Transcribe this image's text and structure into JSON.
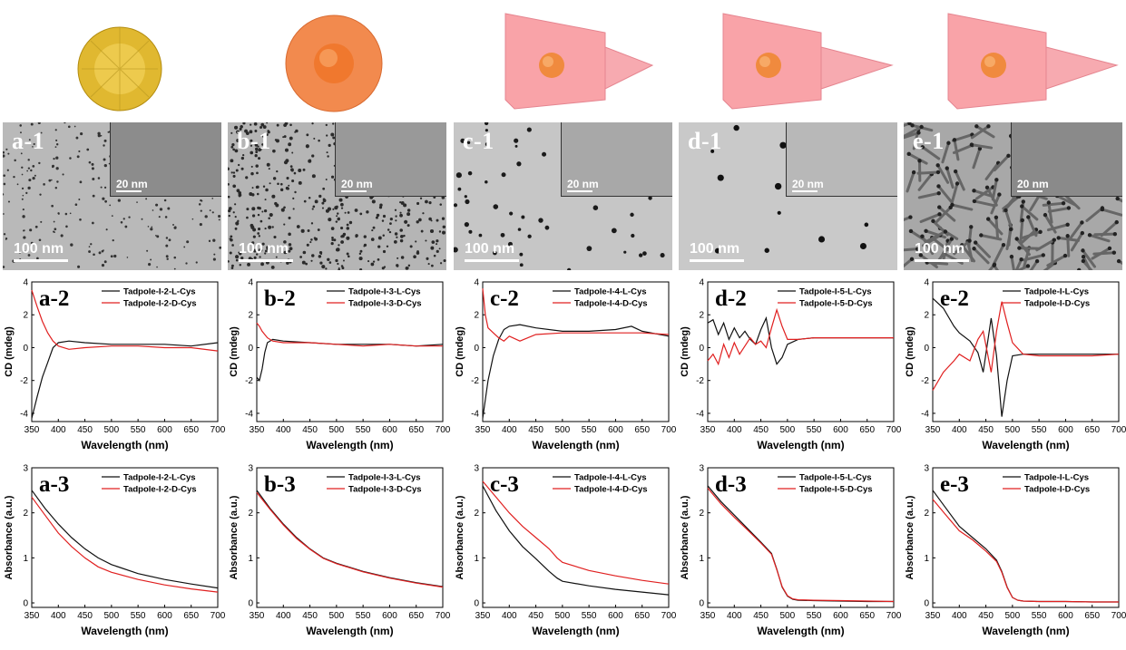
{
  "panels": [
    {
      "tem_label": "a-1",
      "inset_scale": "20 nm",
      "main_scale": "100 nm",
      "cd_label": "a-2",
      "abs_label": "a-3",
      "cd_legend": [
        "Tadpole-I-2-L-Cys",
        "Tadpole-I-2-D-Cys"
      ],
      "abs_legend": [
        "Tadpole-I-2-L-Cys",
        "Tadpole-I-2-D-Cys"
      ],
      "model": "sphere",
      "model_color": "#e0b830"
    },
    {
      "tem_label": "b-1",
      "inset_scale": "20 nm",
      "main_scale": "100 nm",
      "cd_label": "b-2",
      "abs_label": "b-3",
      "cd_legend": [
        "Tadpole-I-3-L-Cys",
        "Tadpole-I-3-D-Cys"
      ],
      "abs_legend": [
        "Tadpole-I-3-L-Cys",
        "Tadpole-I-3-D-Cys"
      ],
      "model": "core-shell",
      "model_color": "#f28a4e"
    },
    {
      "tem_label": "c-1",
      "inset_scale": "20 nm",
      "main_scale": "100 nm",
      "cd_label": "c-2",
      "abs_label": "c-3",
      "cd_legend": [
        "Tadpole-I-4-L-Cys",
        "Tadpole-I-4-D-Cys"
      ],
      "abs_legend": [
        "Tadpole-I-4-L-Cys",
        "Tadpole-I-4-D-Cys"
      ],
      "model": "tadpole-short",
      "model_color": "#f9a3a8"
    },
    {
      "tem_label": "d-1",
      "inset_scale": "20 nm",
      "main_scale": "100 nm",
      "cd_label": "d-2",
      "abs_label": "d-3",
      "cd_legend": [
        "Tadpole-I-5-L-Cys",
        "Tadpole-I-5-D-Cys"
      ],
      "abs_legend": [
        "Tadpole-I-5-L-Cys",
        "Tadpole-I-5-D-Cys"
      ],
      "model": "tadpole-medium",
      "model_color": "#f9a3a8"
    },
    {
      "tem_label": "e-1",
      "inset_scale": "20 nm",
      "main_scale": "100 nm",
      "cd_label": "e-2",
      "abs_label": "e-3",
      "cd_legend": [
        "Tadpole-I-L-Cys",
        "Tadpole-I-D-Cys"
      ],
      "abs_legend": [
        "Tadpole-I-L-Cys",
        "Tadpole-I-D-Cys"
      ],
      "model": "tadpole-long",
      "model_color": "#f9a3a8"
    }
  ],
  "series_colors": {
    "L": "#111111",
    "D": "#e02020"
  },
  "chart_data": [
    {
      "type": "line",
      "panel": "a-2",
      "xlabel": "Wavelength (nm)",
      "ylabel": "CD (mdeg)",
      "xlim": [
        350,
        700
      ],
      "ylim": [
        -4.5,
        4
      ],
      "xticks": [
        350,
        400,
        450,
        500,
        550,
        600,
        650,
        700
      ],
      "yticks": [
        -4,
        -2,
        0,
        2,
        4
      ],
      "series": [
        {
          "name": "Tadpole-I-2-L-Cys",
          "x": [
            350,
            360,
            370,
            380,
            390,
            400,
            420,
            450,
            500,
            550,
            600,
            650,
            700
          ],
          "y": [
            -4.3,
            -3.0,
            -1.8,
            -0.9,
            0.0,
            0.3,
            0.4,
            0.3,
            0.2,
            0.2,
            0.2,
            0.1,
            0.3
          ]
        },
        {
          "name": "Tadpole-I-2-D-Cys",
          "x": [
            350,
            360,
            370,
            380,
            390,
            400,
            420,
            450,
            500,
            550,
            600,
            650,
            700
          ],
          "y": [
            3.5,
            2.5,
            1.6,
            0.9,
            0.4,
            0.1,
            -0.1,
            0.0,
            0.1,
            0.1,
            0.0,
            0.0,
            -0.2
          ]
        }
      ]
    },
    {
      "type": "line",
      "panel": "a-3",
      "xlabel": "Wavelength (nm)",
      "ylabel": "Absorbance (a.u.)",
      "xlim": [
        350,
        700
      ],
      "ylim": [
        -0.1,
        3
      ],
      "xticks": [
        350,
        400,
        450,
        500,
        550,
        600,
        650,
        700
      ],
      "yticks": [
        0,
        1,
        2,
        3
      ],
      "series": [
        {
          "name": "Tadpole-I-2-L-Cys",
          "x": [
            350,
            375,
            400,
            425,
            450,
            475,
            500,
            550,
            600,
            650,
            700
          ],
          "y": [
            2.5,
            2.1,
            1.75,
            1.45,
            1.2,
            1.0,
            0.85,
            0.65,
            0.52,
            0.42,
            0.33
          ]
        },
        {
          "name": "Tadpole-I-2-D-Cys",
          "x": [
            350,
            375,
            400,
            425,
            450,
            475,
            500,
            550,
            600,
            650,
            700
          ],
          "y": [
            2.35,
            1.95,
            1.55,
            1.25,
            1.0,
            0.8,
            0.68,
            0.52,
            0.4,
            0.31,
            0.24
          ]
        }
      ]
    },
    {
      "type": "line",
      "panel": "b-2",
      "xlabel": "Wavelength (nm)",
      "ylabel": "CD (mdeg)",
      "xlim": [
        350,
        700
      ],
      "ylim": [
        -4.5,
        4
      ],
      "xticks": [
        350,
        400,
        450,
        500,
        550,
        600,
        650,
        700
      ],
      "yticks": [
        -4,
        -2,
        0,
        2,
        4
      ],
      "series": [
        {
          "name": "Tadpole-I-3-L-Cys",
          "x": [
            350,
            355,
            360,
            365,
            370,
            380,
            400,
            450,
            500,
            550,
            600,
            650,
            700
          ],
          "y": [
            -1.8,
            -2.0,
            -1.3,
            -0.3,
            0.3,
            0.5,
            0.4,
            0.3,
            0.2,
            0.2,
            0.2,
            0.1,
            0.2
          ]
        },
        {
          "name": "Tadpole-I-3-D-Cys",
          "x": [
            350,
            355,
            360,
            370,
            380,
            400,
            450,
            500,
            550,
            600,
            650,
            700
          ],
          "y": [
            1.5,
            1.3,
            1.0,
            0.6,
            0.4,
            0.3,
            0.3,
            0.2,
            0.1,
            0.2,
            0.1,
            0.1
          ]
        }
      ]
    },
    {
      "type": "line",
      "panel": "b-3",
      "xlabel": "Wavelength (nm)",
      "ylabel": "Absorbance (a.u.)",
      "xlim": [
        350,
        700
      ],
      "ylim": [
        -0.1,
        3
      ],
      "xticks": [
        350,
        400,
        450,
        500,
        550,
        600,
        650,
        700
      ],
      "yticks": [
        0,
        1,
        2,
        3
      ],
      "series": [
        {
          "name": "Tadpole-I-3-L-Cys",
          "x": [
            350,
            375,
            400,
            425,
            450,
            475,
            500,
            550,
            600,
            650,
            700
          ],
          "y": [
            2.5,
            2.1,
            1.75,
            1.45,
            1.2,
            1.0,
            0.88,
            0.7,
            0.56,
            0.45,
            0.36
          ]
        },
        {
          "name": "Tadpole-I-3-D-Cys",
          "x": [
            350,
            375,
            400,
            425,
            450,
            475,
            500,
            550,
            600,
            650,
            700
          ],
          "y": [
            2.45,
            2.08,
            1.73,
            1.43,
            1.19,
            0.99,
            0.87,
            0.69,
            0.55,
            0.44,
            0.35
          ]
        }
      ]
    },
    {
      "type": "line",
      "panel": "c-2",
      "xlabel": "Wavelength (nm)",
      "ylabel": "CD (mdeg)",
      "xlim": [
        350,
        700
      ],
      "ylim": [
        -4.5,
        4
      ],
      "xticks": [
        350,
        400,
        450,
        500,
        550,
        600,
        650,
        700
      ],
      "yticks": [
        -4,
        -2,
        0,
        2,
        4
      ],
      "series": [
        {
          "name": "Tadpole-I-4-L-Cys",
          "x": [
            350,
            360,
            370,
            380,
            390,
            400,
            420,
            450,
            500,
            550,
            600,
            630,
            650,
            700
          ],
          "y": [
            -4.3,
            -2.0,
            -0.5,
            0.5,
            1.1,
            1.3,
            1.4,
            1.2,
            1.0,
            1.0,
            1.1,
            1.3,
            1.0,
            0.7
          ]
        },
        {
          "name": "Tadpole-I-4-D-Cys",
          "x": [
            350,
            355,
            360,
            370,
            380,
            390,
            400,
            420,
            450,
            500,
            550,
            600,
            650,
            700
          ],
          "y": [
            3.6,
            2.0,
            1.2,
            0.9,
            0.6,
            0.4,
            0.7,
            0.4,
            0.8,
            0.9,
            0.9,
            0.9,
            0.9,
            0.8
          ]
        }
      ]
    },
    {
      "type": "line",
      "panel": "c-3",
      "xlabel": "Wavelength (nm)",
      "ylabel": "Absorbance (a.u.)",
      "xlim": [
        350,
        700
      ],
      "ylim": [
        -0.1,
        3
      ],
      "xticks": [
        350,
        400,
        450,
        500,
        550,
        600,
        650,
        700
      ],
      "yticks": [
        0,
        1,
        2,
        3
      ],
      "series": [
        {
          "name": "Tadpole-I-4-L-Cys",
          "x": [
            350,
            375,
            400,
            425,
            450,
            475,
            490,
            500,
            550,
            600,
            650,
            700
          ],
          "y": [
            2.6,
            2.05,
            1.6,
            1.25,
            0.98,
            0.7,
            0.55,
            0.48,
            0.38,
            0.3,
            0.24,
            0.18
          ]
        },
        {
          "name": "Tadpole-I-4-D-Cys",
          "x": [
            350,
            375,
            400,
            425,
            450,
            475,
            490,
            500,
            550,
            600,
            650,
            700
          ],
          "y": [
            2.7,
            2.35,
            2.0,
            1.7,
            1.45,
            1.2,
            1.0,
            0.9,
            0.72,
            0.6,
            0.5,
            0.42
          ]
        }
      ]
    },
    {
      "type": "line",
      "panel": "d-2",
      "xlabel": "Wavelength (nm)",
      "ylabel": "CD (mdeg)",
      "xlim": [
        350,
        700
      ],
      "ylim": [
        -4.5,
        4
      ],
      "xticks": [
        350,
        400,
        450,
        500,
        550,
        600,
        650,
        700
      ],
      "yticks": [
        -4,
        -2,
        0,
        2,
        4
      ],
      "series": [
        {
          "name": "Tadpole-I-5-L-Cys",
          "x": [
            350,
            360,
            370,
            380,
            390,
            400,
            410,
            420,
            430,
            440,
            450,
            460,
            470,
            480,
            490,
            500,
            520,
            550,
            600,
            650,
            700
          ],
          "y": [
            1.5,
            1.7,
            0.8,
            1.5,
            0.5,
            1.2,
            0.6,
            1.0,
            0.5,
            0.2,
            1.1,
            1.8,
            0.0,
            -1.0,
            -0.6,
            0.2,
            0.5,
            0.6,
            0.6,
            0.6,
            0.6
          ]
        },
        {
          "name": "Tadpole-I-5-D-Cys",
          "x": [
            350,
            360,
            370,
            380,
            390,
            400,
            410,
            420,
            430,
            440,
            450,
            460,
            470,
            480,
            490,
            500,
            520,
            550,
            600,
            650,
            700
          ],
          "y": [
            -0.8,
            -0.4,
            -1.0,
            0.2,
            -0.6,
            0.3,
            -0.4,
            0.1,
            0.6,
            0.2,
            0.4,
            0.0,
            1.2,
            2.3,
            1.3,
            0.5,
            0.5,
            0.6,
            0.6,
            0.6,
            0.6
          ]
        }
      ]
    },
    {
      "type": "line",
      "panel": "d-3",
      "xlabel": "Wavelength (nm)",
      "ylabel": "Absorbance (a.u.)",
      "xlim": [
        350,
        700
      ],
      "ylim": [
        -0.1,
        3
      ],
      "xticks": [
        350,
        400,
        450,
        500,
        550,
        600,
        650,
        700
      ],
      "yticks": [
        0,
        1,
        2,
        3
      ],
      "series": [
        {
          "name": "Tadpole-I-5-L-Cys",
          "x": [
            350,
            375,
            400,
            425,
            450,
            470,
            480,
            490,
            500,
            510,
            520,
            550,
            600,
            650,
            700
          ],
          "y": [
            2.6,
            2.25,
            1.95,
            1.65,
            1.35,
            1.1,
            0.75,
            0.35,
            0.15,
            0.08,
            0.06,
            0.05,
            0.04,
            0.03,
            0.03
          ]
        },
        {
          "name": "Tadpole-I-5-D-Cys",
          "x": [
            350,
            375,
            400,
            425,
            450,
            470,
            480,
            490,
            500,
            510,
            520,
            550,
            600,
            650,
            700
          ],
          "y": [
            2.55,
            2.2,
            1.9,
            1.62,
            1.33,
            1.08,
            0.74,
            0.36,
            0.16,
            0.09,
            0.07,
            0.06,
            0.05,
            0.04,
            0.03
          ]
        }
      ]
    },
    {
      "type": "line",
      "panel": "e-2",
      "xlabel": "Wavelength (nm)",
      "ylabel": "CD (mdeg)",
      "xlim": [
        350,
        700
      ],
      "ylim": [
        -4.5,
        4
      ],
      "xticks": [
        350,
        400,
        450,
        500,
        550,
        600,
        650,
        700
      ],
      "yticks": [
        -4,
        -2,
        0,
        2,
        4
      ],
      "series": [
        {
          "name": "Tadpole-I-L-Cys",
          "x": [
            350,
            370,
            390,
            400,
            420,
            435,
            445,
            460,
            470,
            480,
            490,
            500,
            520,
            550,
            600,
            650,
            700
          ],
          "y": [
            3.0,
            2.4,
            1.3,
            0.9,
            0.4,
            -0.3,
            -1.5,
            1.8,
            -0.5,
            -4.2,
            -2.0,
            -0.5,
            -0.4,
            -0.4,
            -0.4,
            -0.4,
            -0.4
          ]
        },
        {
          "name": "Tadpole-I-D-Cys",
          "x": [
            350,
            370,
            390,
            400,
            420,
            435,
            445,
            460,
            470,
            480,
            490,
            500,
            520,
            550,
            600,
            650,
            700
          ],
          "y": [
            -2.6,
            -1.5,
            -0.8,
            -0.4,
            -0.8,
            0.5,
            1.0,
            -1.5,
            1.0,
            2.8,
            1.5,
            0.3,
            -0.4,
            -0.5,
            -0.5,
            -0.5,
            -0.4
          ]
        }
      ]
    },
    {
      "type": "line",
      "panel": "e-3",
      "xlabel": "Wavelength (nm)",
      "ylabel": "Absorbance (a.u.)",
      "xlim": [
        350,
        700
      ],
      "ylim": [
        -0.1,
        3
      ],
      "xticks": [
        350,
        400,
        450,
        500,
        550,
        600,
        650,
        700
      ],
      "yticks": [
        0,
        1,
        2,
        3
      ],
      "series": [
        {
          "name": "Tadpole-I-L-Cys",
          "x": [
            350,
            375,
            400,
            425,
            450,
            470,
            480,
            490,
            500,
            510,
            520,
            550,
            600,
            650,
            700
          ],
          "y": [
            2.5,
            2.1,
            1.7,
            1.45,
            1.2,
            0.95,
            0.7,
            0.35,
            0.12,
            0.06,
            0.04,
            0.03,
            0.03,
            0.02,
            0.02
          ]
        },
        {
          "name": "Tadpole-I-D-Cys",
          "x": [
            350,
            375,
            400,
            425,
            450,
            470,
            480,
            490,
            500,
            510,
            520,
            550,
            600,
            650,
            700
          ],
          "y": [
            2.3,
            1.95,
            1.6,
            1.4,
            1.15,
            0.92,
            0.68,
            0.34,
            0.12,
            0.06,
            0.04,
            0.03,
            0.03,
            0.02,
            0.02
          ]
        }
      ]
    }
  ]
}
